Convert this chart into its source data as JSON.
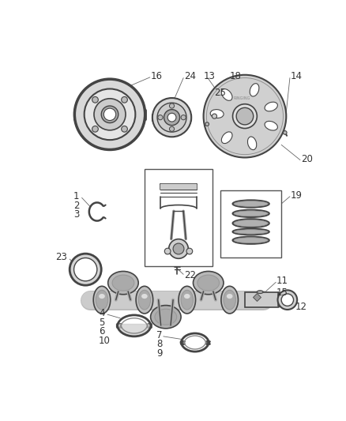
{
  "bg_color": "#ffffff",
  "text_color": "#333333",
  "line_color": "#444444",
  "part_fill": "#e8e8e8",
  "part_dark": "#999999",
  "part_light": "#f0f0f0"
}
